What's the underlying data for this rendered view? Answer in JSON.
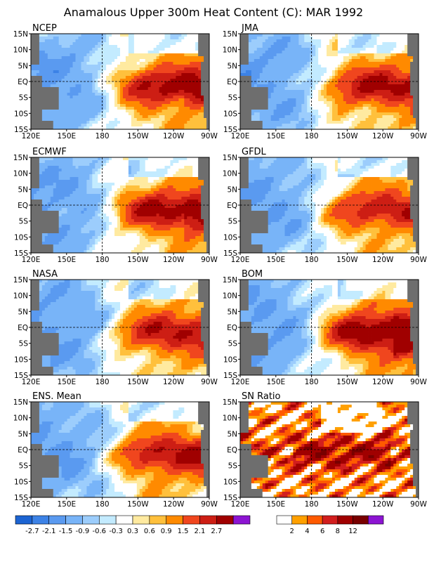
{
  "title": "Anamalous Upper 300m Heat Content (C): MAR 1992",
  "chart_data": [
    {
      "type": "heatmap",
      "panel_label": "NCEP",
      "variant": 0,
      "strength": 1.0,
      "purple": 0.25
    },
    {
      "type": "heatmap",
      "panel_label": "JMA",
      "variant": 1,
      "strength": 0.95,
      "purple": 0.0
    },
    {
      "type": "heatmap",
      "panel_label": "ECMWF",
      "variant": 2,
      "strength": 1.0,
      "purple": 0.3
    },
    {
      "type": "heatmap",
      "panel_label": "GFDL",
      "variant": 3,
      "strength": 0.85,
      "purple": 0.0
    },
    {
      "type": "heatmap",
      "panel_label": "NASA",
      "variant": 4,
      "strength": 0.9,
      "purple": 0.0
    },
    {
      "type": "heatmap",
      "panel_label": "BOM",
      "variant": 5,
      "strength": 1.15,
      "purple": 1.0
    },
    {
      "type": "heatmap",
      "panel_label": "ENS. Mean",
      "variant": 6,
      "strength": 0.95,
      "purple": 0.0
    },
    {
      "type": "heatmap",
      "panel_label": "SN Ratio",
      "variant": 7,
      "strength": 1.0,
      "purple": 0.0,
      "sn": true
    }
  ],
  "axes": {
    "x_ticks": [
      "120E",
      "150E",
      "180",
      "150W",
      "120W",
      "90W"
    ],
    "y_ticks": [
      "15N",
      "10N",
      "5N",
      "EQ",
      "5S",
      "10S",
      "15S"
    ]
  },
  "colorbar_anomaly": {
    "labels": [
      "-2.7",
      "-2.1",
      "-1.5",
      "-0.9",
      "-0.6",
      "-0.3",
      "0.3",
      "0.6",
      "0.9",
      "1.5",
      "2.1",
      "2.7"
    ],
    "colors": [
      "#1c64d2",
      "#3c82e6",
      "#5a9af0",
      "#78b4f8",
      "#9ccdfc",
      "#c3ebff",
      "#ffffff",
      "#ffeaa0",
      "#ffc03c",
      "#ff8a00",
      "#f0461e",
      "#cd1e14",
      "#a00000",
      "#8c14d2"
    ]
  },
  "colorbar_sn": {
    "labels": [
      "2",
      "4",
      "6",
      "8",
      "12"
    ],
    "colors": [
      "#ffffff",
      "#ffa000",
      "#ff5a00",
      "#d21e1e",
      "#a00000",
      "#780000",
      "#8c14d2"
    ]
  },
  "land_color": "#6e6e6e"
}
